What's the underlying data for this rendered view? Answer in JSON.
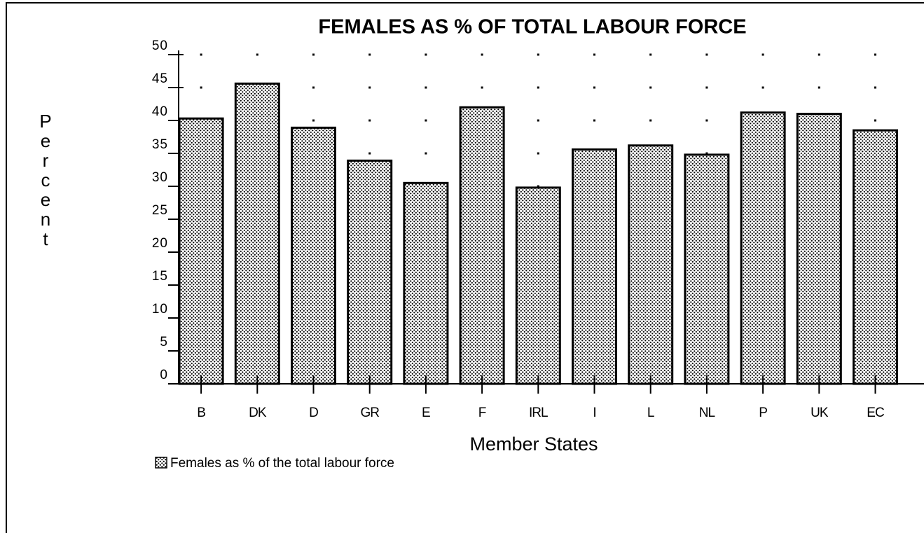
{
  "chart_data": {
    "type": "bar",
    "title": "FEMALES AS % OF TOTAL LABOUR FORCE",
    "x_label": "Member States",
    "y_label": "Percent",
    "categories": [
      "B",
      "DK",
      "D",
      "GR",
      "E",
      "F",
      "IRL",
      "I",
      "L",
      "NL",
      "P",
      "UK",
      "EC"
    ],
    "series": [
      {
        "name": "Females as % of the total labour force",
        "color": "#000000",
        "values": [
          40.3,
          45.6,
          38.9,
          33.9,
          30.5,
          42.0,
          29.8,
          35.6,
          36.2,
          34.8,
          41.2,
          41.0,
          38.5
        ]
      }
    ],
    "ylim": [
      0,
      50
    ],
    "yticks": [
      0,
      5,
      10,
      15,
      20,
      25,
      30,
      35,
      40,
      45,
      50
    ],
    "grid": true,
    "legend": "bottom-left"
  }
}
